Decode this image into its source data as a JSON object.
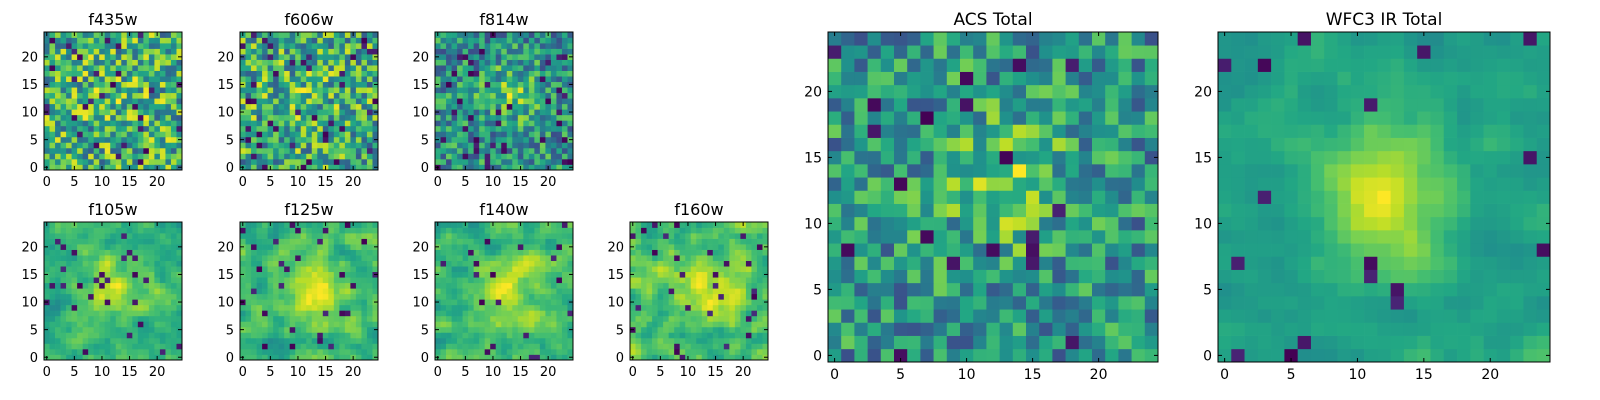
{
  "figure": {
    "colormap": "viridis",
    "background": "#ffffff"
  },
  "chart_data": [
    {
      "type": "heatmap",
      "id": "f435w",
      "title": "f435w",
      "grid_size": 25,
      "xlim": [
        -0.5,
        24.5
      ],
      "ylim": [
        -0.5,
        24.5
      ],
      "xticks": [
        0,
        5,
        10,
        15,
        20
      ],
      "yticks": [
        0,
        5,
        10,
        15,
        20
      ],
      "seed": 435,
      "structure": "noise",
      "center": [
        12,
        13
      ],
      "sigma": 4.0,
      "amp": 0.05,
      "noise": 0.18,
      "min_frac": 0.05,
      "grid": false
    },
    {
      "type": "heatmap",
      "id": "f606w",
      "title": "f606w",
      "grid_size": 25,
      "xlim": [
        -0.5,
        24.5
      ],
      "ylim": [
        -0.5,
        24.5
      ],
      "xticks": [
        0,
        5,
        10,
        15,
        20
      ],
      "yticks": [
        0,
        5,
        10,
        15,
        20
      ],
      "seed": 606,
      "structure": "noise",
      "center": [
        12,
        13
      ],
      "sigma": 4.0,
      "amp": 0.05,
      "noise": 0.18,
      "min_frac": 0.05,
      "grid": false
    },
    {
      "type": "heatmap",
      "id": "f814w",
      "title": "f814w",
      "grid_size": 25,
      "xlim": [
        -0.5,
        24.5
      ],
      "ylim": [
        -0.5,
        24.5
      ],
      "xticks": [
        0,
        5,
        10,
        15,
        20
      ],
      "yticks": [
        0,
        5,
        10,
        15,
        20
      ],
      "seed": 814,
      "structure": "noise",
      "center": [
        13,
        13
      ],
      "sigma": 3.5,
      "amp": 0.22,
      "noise": 0.18,
      "min_frac": 0.06,
      "grid": false
    },
    {
      "type": "heatmap",
      "id": "f105w",
      "title": "f105w",
      "grid_size": 25,
      "xlim": [
        -0.5,
        24.5
      ],
      "ylim": [
        -0.5,
        24.5
      ],
      "xticks": [
        0,
        5,
        10,
        15,
        20
      ],
      "yticks": [
        0,
        5,
        10,
        15,
        20
      ],
      "seed": 105,
      "structure": "smooth",
      "center": [
        12,
        13
      ],
      "sigma": 4.0,
      "amp": 0.2,
      "noise": 0.16,
      "min_frac": 0.04,
      "grid": false
    },
    {
      "type": "heatmap",
      "id": "f125w",
      "title": "f125w",
      "grid_size": 25,
      "xlim": [
        -0.5,
        24.5
      ],
      "ylim": [
        -0.5,
        24.5
      ],
      "xticks": [
        0,
        5,
        10,
        15,
        20
      ],
      "yticks": [
        0,
        5,
        10,
        15,
        20
      ],
      "seed": 125,
      "structure": "smooth",
      "center": [
        13,
        12
      ],
      "sigma": 3.5,
      "amp": 0.28,
      "noise": 0.16,
      "min_frac": 0.04,
      "grid": false
    },
    {
      "type": "heatmap",
      "id": "f140w",
      "title": "f140w",
      "grid_size": 25,
      "xlim": [
        -0.5,
        24.5
      ],
      "ylim": [
        -0.5,
        24.5
      ],
      "xticks": [
        0,
        5,
        10,
        15,
        20
      ],
      "yticks": [
        0,
        5,
        10,
        15,
        20
      ],
      "seed": 140,
      "structure": "smooth",
      "center": [
        12,
        12
      ],
      "sigma": 4.0,
      "amp": 0.18,
      "noise": 0.15,
      "min_frac": 0.03,
      "grid": false
    },
    {
      "type": "heatmap",
      "id": "f160w",
      "title": "f160w",
      "grid_size": 25,
      "xlim": [
        -0.5,
        24.5
      ],
      "ylim": [
        -0.5,
        24.5
      ],
      "xticks": [
        0,
        5,
        10,
        15,
        20
      ],
      "yticks": [
        0,
        5,
        10,
        15,
        20
      ],
      "seed": 160,
      "structure": "smooth",
      "center": [
        13,
        12
      ],
      "sigma": 3.5,
      "amp": 0.22,
      "noise": 0.16,
      "min_frac": 0.05,
      "grid": false
    },
    {
      "type": "heatmap",
      "id": "acs-total",
      "title": "ACS Total",
      "grid_size": 25,
      "xlim": [
        -0.5,
        24.5
      ],
      "ylim": [
        -0.5,
        24.5
      ],
      "xticks": [
        0,
        5,
        10,
        15,
        20
      ],
      "yticks": [
        0,
        5,
        10,
        15,
        20
      ],
      "seed": 901,
      "structure": "noise",
      "center": [
        13,
        13
      ],
      "sigma": 3.5,
      "amp": 0.24,
      "noise": 0.17,
      "min_frac": 0.05,
      "grid": false
    },
    {
      "type": "heatmap",
      "id": "wfc3-ir-total",
      "title": "WFC3 IR Total",
      "grid_size": 25,
      "xlim": [
        -0.5,
        24.5
      ],
      "ylim": [
        -0.5,
        24.5
      ],
      "xticks": [
        0,
        5,
        10,
        15,
        20
      ],
      "yticks": [
        0,
        5,
        10,
        15,
        20
      ],
      "seed": 902,
      "structure": "smooth",
      "center": [
        12,
        12
      ],
      "sigma": 3.5,
      "amp": 0.34,
      "noise": 0.1,
      "min_frac": 0.03,
      "grid": false
    }
  ]
}
